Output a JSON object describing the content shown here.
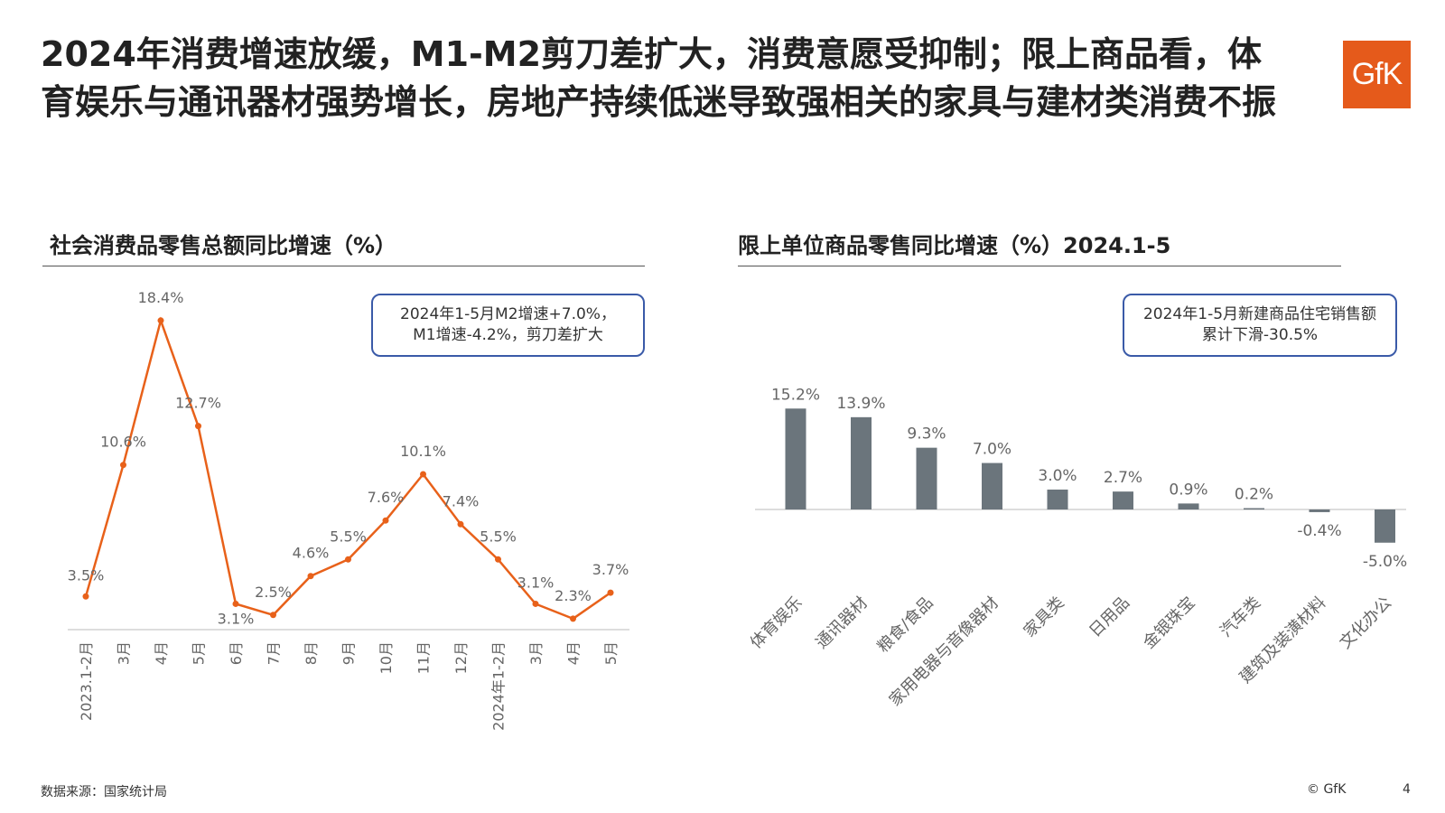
{
  "title": "2024年消费增速放缓，M1-M2剪刀差扩大，消费意愿受抑制；限上商品看，体育娱乐与通讯器材强势增长，房地产持续低迷导致强相关的家具与建材类消费不振",
  "logo": "GfK",
  "left_panel": {
    "subtitle": "社会消费品零售总额同比增速（%）",
    "note_line1": "2024年1-5月M2增速+7.0%，",
    "note_line2": "M1增速-4.2%，剪刀差扩大"
  },
  "right_panel": {
    "subtitle": "限上单位商品零售同比增速（%）2024.1-5",
    "note_line1": "2024年1-5月新建商品住宅销售额",
    "note_line2": "累计下滑-30.5%"
  },
  "footer": {
    "source": "数据来源：国家统计局",
    "copyright": "© GfK",
    "page": "4"
  },
  "chart_data": [
    {
      "type": "line",
      "title": "社会消费品零售总额同比增速（%）",
      "categories": [
        "2023.1-2月",
        "3月",
        "4月",
        "5月",
        "6月",
        "7月",
        "8月",
        "9月",
        "10月",
        "11月",
        "12月",
        "2024年1-2月",
        "3月",
        "4月",
        "5月"
      ],
      "values": [
        3.5,
        10.6,
        18.4,
        12.7,
        3.1,
        2.5,
        4.6,
        5.5,
        7.6,
        10.1,
        7.4,
        5.5,
        3.1,
        2.3,
        3.7
      ],
      "labels": [
        "3.5%",
        "10.6%",
        "18.4%",
        "12.7%",
        "3.1%",
        "2.5%",
        "4.6%",
        "5.5%",
        "7.6%",
        "10.1%",
        "7.4%",
        "5.5%",
        "3.1%",
        "2.3%",
        "3.7%"
      ],
      "color": "#e8611a",
      "grid": false
    },
    {
      "type": "bar",
      "title": "限上单位商品零售同比增速（%）2024.1-5",
      "categories": [
        "体育娱乐",
        "通讯器材",
        "粮食/食品",
        "家用电器与音像器材",
        "家具类",
        "日用品",
        "金银珠宝",
        "汽车类",
        "建筑及装潢材料",
        "文化办公"
      ],
      "values": [
        15.2,
        13.9,
        9.3,
        7.0,
        3.0,
        2.7,
        0.9,
        0.2,
        -0.4,
        -5.0
      ],
      "labels": [
        "15.2%",
        "13.9%",
        "9.3%",
        "7.0%",
        "3.0%",
        "2.7%",
        "0.9%",
        "0.2%",
        "-0.4%",
        "-5.0%"
      ],
      "color": "#6b757c",
      "grid": false
    }
  ]
}
